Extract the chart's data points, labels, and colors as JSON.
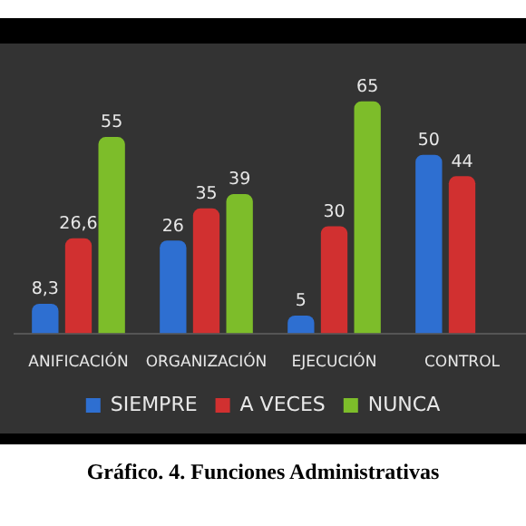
{
  "chart_data": {
    "type": "bar",
    "title": "Gráfico. 4. Funciones Administrativas",
    "relative": false,
    "categories": [
      "ANIFICACIÓN",
      "ORGANIZACIÓN",
      "EJECUCIÓN",
      "CONTROL"
    ],
    "series": [
      {
        "name": "SIEMPRE",
        "color": "#2e6fd1",
        "values": [
          8.3,
          26,
          5,
          50
        ],
        "value_labels": [
          "8,3",
          "26",
          "5",
          "50"
        ]
      },
      {
        "name": "A VECES",
        "color": "#d13030",
        "values": [
          26.6,
          35,
          30,
          44
        ],
        "value_labels": [
          "26,6",
          "35",
          "30",
          "44"
        ]
      },
      {
        "name": "NUNCA",
        "color": "#7dbd2a",
        "values": [
          55,
          39,
          65,
          null
        ],
        "value_labels": [
          "55",
          "39",
          "65",
          null
        ]
      }
    ],
    "legend": "bottom",
    "grid": false,
    "tick_labels": "x"
  }
}
